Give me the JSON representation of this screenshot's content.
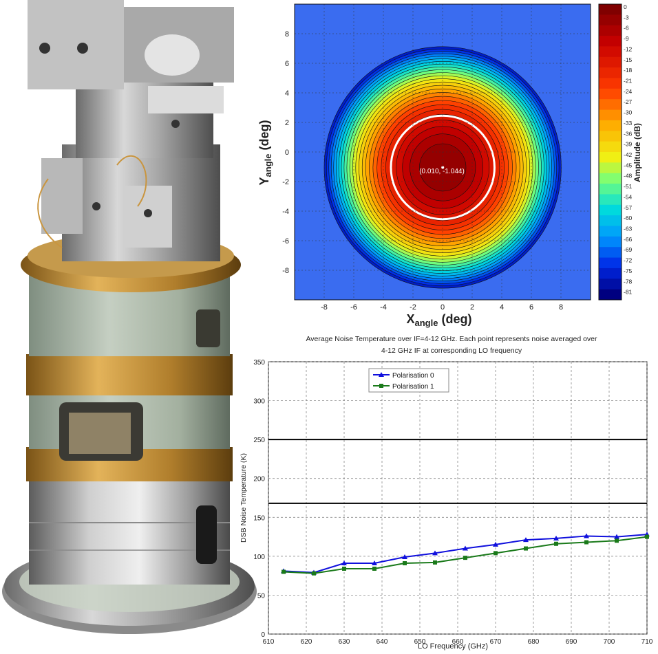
{
  "figure": {
    "photo": {
      "subject": "receiver-cartridge-photo"
    },
    "beam_map": {
      "type": "heatmap",
      "xlabel_main": "X",
      "xlabel_sub": "angle",
      "xlabel_unit": " (deg)",
      "ylabel_main": "Y",
      "ylabel_sub": "angle",
      "ylabel_unit": " (deg)",
      "xlim": [
        -10,
        10
      ],
      "ylim": [
        -10,
        10
      ],
      "x_ticks": [
        -8,
        -6,
        -4,
        -2,
        0,
        2,
        4,
        6,
        8
      ],
      "y_ticks": [
        -8,
        -6,
        -4,
        -2,
        0,
        2,
        4,
        6,
        8
      ],
      "peak_label": "(0.010, -1.044)",
      "peak": {
        "x": 0.01,
        "y": -1.044
      },
      "colorbar_label": "Amplitude (dB)",
      "colorbar_ticks": [
        0,
        -3,
        -6,
        -9,
        -12,
        -15,
        -18,
        -21,
        -24,
        -27,
        -30,
        -33,
        -36,
        -39,
        -42,
        -45,
        -48,
        -51,
        -54,
        -57,
        -60,
        -63,
        -66,
        -69,
        -72,
        -75,
        -78,
        -81
      ],
      "colorbar_range": [
        -84,
        0
      ],
      "white_circle_radius_deg": 3.5
    },
    "chart_data": {
      "type": "line",
      "title_line1": "Average Noise Temperature over IF=4-12 GHz. Each point represents noise averaged over",
      "title_line2": "4-12 GHz IF at corresponding LO frequency",
      "xlabel": "LO Frequency (GHz)",
      "ylabel": "DSB Noise Temperature (K)",
      "xlim": [
        610,
        710
      ],
      "ylim": [
        0,
        350
      ],
      "x_ticks": [
        610,
        620,
        630,
        640,
        650,
        660,
        670,
        680,
        690,
        700,
        710
      ],
      "y_ticks": [
        0,
        50,
        100,
        150,
        200,
        250,
        300,
        350
      ],
      "grid": true,
      "legend_position": "top-left",
      "reference_lines": [
        168,
        250
      ],
      "x": [
        614,
        622,
        630,
        638,
        646,
        654,
        662,
        670,
        678,
        686,
        694,
        702,
        710
      ],
      "series": [
        {
          "name": "Polarisation 0",
          "color": "#1010dd",
          "marker": "triangle",
          "values": [
            81,
            79,
            91,
            91,
            99,
            104,
            110,
            115,
            121,
            123,
            126,
            125,
            128
          ]
        },
        {
          "name": "Polarisation 1",
          "color": "#1a7a1a",
          "marker": "square",
          "values": [
            80,
            78,
            84,
            84,
            91,
            92,
            98,
            104,
            110,
            116,
            118,
            120,
            125
          ]
        }
      ]
    }
  }
}
